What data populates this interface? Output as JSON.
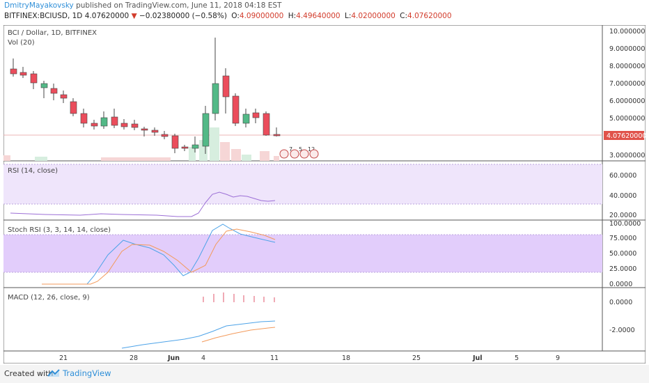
{
  "header": {
    "author": "DmitryMayakovsky",
    "published_text": "published on TradingView.com, June 11, 2018 04:18 EST",
    "symbol": "BITFINEX:BCIUSD, 1D",
    "last": "4.07620000",
    "change": "−0.02380000 (−0.58%)",
    "open_label": "O:",
    "open": "4.09000000",
    "high_label": "H:",
    "high": "4.49640000",
    "low_label": "L:",
    "low": "4.02000000",
    "close_label": "C:",
    "close": "4.07620000"
  },
  "main_pane": {
    "title": "BCI / Dollar, 1D, BITFINEX",
    "volume_label": "Vol (20)",
    "price_ticks": [
      "10.00000000",
      "9.00000000",
      "8.00000000",
      "7.00000000",
      "6.00000000",
      "5.00000000",
      "3.00000000"
    ],
    "last_price_tag": "4.07620000",
    "events": [
      "7",
      "5",
      "12"
    ]
  },
  "rsi_pane": {
    "title": "RSI (14, close)",
    "ticks": [
      "60.0000",
      "40.0000",
      "20.0000"
    ]
  },
  "stoch_pane": {
    "title": "Stoch RSI (3, 3, 14, 14, close)",
    "ticks": [
      "100.0000",
      "75.0000",
      "50.0000",
      "25.0000",
      "0.0000"
    ]
  },
  "macd_pane": {
    "title": "MACD (12, 26, close, 9)",
    "ticks": [
      "0.0000",
      "-2.0000"
    ]
  },
  "time_axis": {
    "labels": [
      "21",
      "28",
      "Jun",
      "4",
      "11",
      "18",
      "25",
      "Jul",
      "5",
      "9"
    ]
  },
  "footer": {
    "created_with": "Created with",
    "brand": "TradingView"
  },
  "colors": {
    "up": "#53b987",
    "down": "#eb4d5c",
    "author_link": "#2f8fd8",
    "rsi_band": "#efe5fb",
    "stoch_band": "#e2cdfb",
    "k_line": "#4da3e8",
    "d_line": "#f39a5b"
  }
}
